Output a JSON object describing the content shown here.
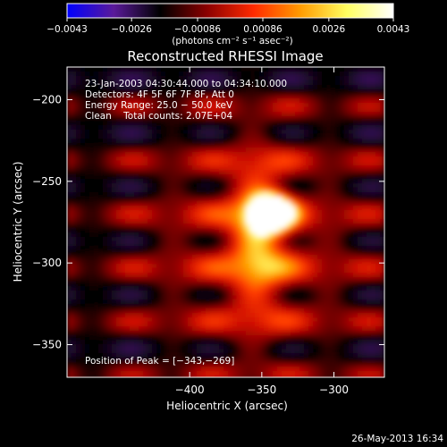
{
  "chart_data": {
    "type": "heatmap",
    "title": "Reconstructed RHESSI Image",
    "xlabel": "Heliocentric X (arcsec)",
    "ylabel": "Heliocentric Y (arcsec)",
    "xlim": [
      -485,
      -265
    ],
    "ylim": [
      -370,
      -180
    ],
    "x_ticks": [
      {
        "value": -400,
        "label": "−400"
      },
      {
        "value": -350,
        "label": "−350"
      },
      {
        "value": -300,
        "label": "−300"
      }
    ],
    "y_ticks": [
      {
        "value": -200,
        "label": "−200"
      },
      {
        "value": -250,
        "label": "−250"
      },
      {
        "value": -300,
        "label": "−300"
      },
      {
        "value": -350,
        "label": "−350"
      }
    ],
    "colorbar": {
      "range": [
        -0.0043,
        0.0043
      ],
      "ticks": [
        {
          "value": -0.0043,
          "label": "−0.0043"
        },
        {
          "value": -0.0026,
          "label": "−0.0026"
        },
        {
          "value": -0.00086,
          "label": "−0.00086"
        },
        {
          "value": 0.00086,
          "label": "0.00086"
        },
        {
          "value": 0.0026,
          "label": "0.0026"
        },
        {
          "value": 0.0043,
          "label": "0.0043"
        }
      ],
      "unit_label": "(photons cm⁻² s⁻¹ asec⁻²)",
      "colormap": [
        "#0000ff",
        "#5a1a9a",
        "#000000",
        "#8b0000",
        "#ff2a00",
        "#ff9a00",
        "#ffff60",
        "#ffffff"
      ]
    },
    "annotations": {
      "time_range": "23-Jan-2003 04:30:44.000 to 04:34:10.000",
      "detectors": "Detectors: 4F 5F 6F 7F 8F, Att 0",
      "energy_range": "Energy Range: 25.0 − 50.0 keV",
      "clean_counts": "Clean    Total counts: 2.07E+04",
      "peak_position": "Position of Peak = [−343,−269]"
    },
    "peak": {
      "x": -343,
      "y": -269
    },
    "background_color": "#000000"
  },
  "footer": {
    "timestamp": "26-May-2013 16:34"
  }
}
